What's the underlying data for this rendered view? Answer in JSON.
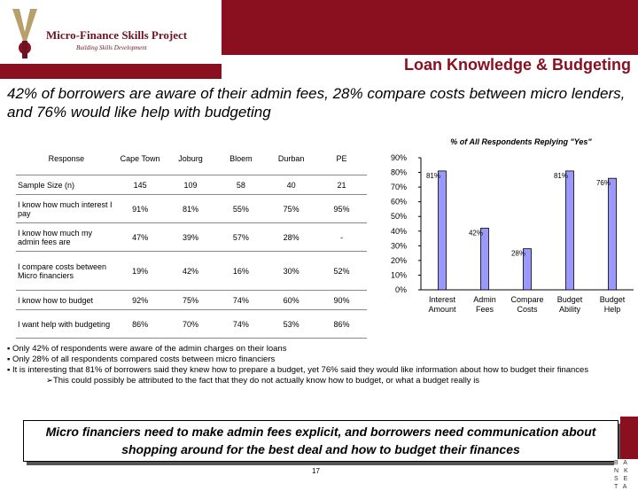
{
  "header": {
    "logo_name": "Micro-Finance Skills Project",
    "logo_tagline": "Building Skills Development",
    "title": "Loan Knowledge & Budgeting"
  },
  "subtitle": "42% of borrowers are aware of their admin fees, 28% compare costs between micro lenders, and 76% would like help with budgeting",
  "table": {
    "headers": [
      "Response",
      "Cape Town",
      "Joburg",
      "Bloem",
      "Durban",
      "PE"
    ],
    "rows": [
      {
        "label": "Sample Size (n)",
        "values": [
          "145",
          "109",
          "58",
          "40",
          "21"
        ]
      },
      {
        "label": "I know how much interest I pay",
        "values": [
          "91%",
          "81%",
          "55%",
          "75%",
          "95%"
        ]
      },
      {
        "label": "I know how much my admin fees are",
        "values": [
          "47%",
          "39%",
          "57%",
          "28%",
          "-"
        ]
      },
      {
        "label": "I compare costs between Micro financiers",
        "values": [
          "19%",
          "42%",
          "16%",
          "30%",
          "52%"
        ]
      },
      {
        "label": "I know how to budget",
        "values": [
          "92%",
          "75%",
          "74%",
          "60%",
          "90%"
        ]
      },
      {
        "label": "I want help with budgeting",
        "values": [
          "86%",
          "70%",
          "74%",
          "53%",
          "86%"
        ]
      }
    ]
  },
  "chart_data": {
    "type": "bar",
    "title": "% of All Respondents Replying \"Yes\"",
    "categories": [
      "Interest Amount",
      "Admin Fees",
      "Compare Costs",
      "Budget Ability",
      "Budget Help"
    ],
    "values": [
      81,
      42,
      28,
      81,
      76
    ],
    "value_labels": [
      "81%",
      "42%",
      "28%",
      "81%",
      "76%"
    ],
    "ylim": [
      0,
      90
    ],
    "yticks": [
      0,
      10,
      20,
      30,
      40,
      50,
      60,
      70,
      80,
      90
    ],
    "ytick_labels": [
      "0%",
      "10%",
      "20%",
      "30%",
      "40%",
      "50%",
      "60%",
      "70%",
      "80%",
      "90%"
    ],
    "bar_color": "#9999ff",
    "grid": false,
    "legend": "none"
  },
  "bullets": [
    "Only 42% of respondents were aware of the admin charges on their loans",
    "Only 28% of all respondents compared costs between micro financiers",
    "It is interesting that 81% of borrowers said they knew how to prepare a budget, yet 76% said they would like information about how to budget their finances"
  ],
  "sub_bullet": "This could possibly be attributed to the fact that they do not actually know how to budget, or what a budget really is",
  "callout": "Micro financiers need to make admin fees explicit, and borrowers need communication about shopping around for the best deal and how to budget their finances",
  "page_number": "17",
  "corner_logo": [
    "B A N K",
    "S E T A"
  ],
  "colors": {
    "brand": "#8a1020",
    "bar": "#9999ff"
  }
}
